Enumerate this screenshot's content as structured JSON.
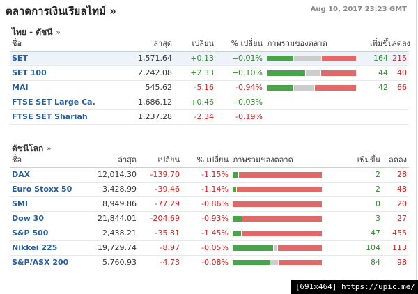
{
  "header": {
    "title": "ตลาดการเงินเรียลไทม์ »",
    "timestamp": "Aug 10, 2017 23:23 GMT"
  },
  "thai": {
    "title": "ไทย - ดัชนี",
    "chevron": "»",
    "columns": [
      "ชื่อ",
      "ล่าสุด",
      "เปลี่ยน",
      "% เปลี่ยน",
      "ภาพรวมของตลาด",
      "เพิ่มขึ้น",
      "ลดลง"
    ],
    "rows": [
      {
        "name": "SET",
        "last": "1,571.64",
        "change": "+0.13",
        "pct": "+0.01%",
        "up": "164",
        "down": "215",
        "dir": "pos",
        "breadth": [
          164,
          170,
          215
        ]
      },
      {
        "name": "SET 100",
        "last": "2,242.08",
        "change": "+2.33",
        "pct": "+0.10%",
        "up": "44",
        "down": "40",
        "dir": "pos",
        "breadth": [
          44,
          16,
          40
        ]
      },
      {
        "name": "MAI",
        "last": "545.62",
        "change": "-5.16",
        "pct": "-0.94%",
        "up": "42",
        "down": "66",
        "dir": "neg",
        "breadth": [
          42,
          33,
          66
        ]
      },
      {
        "name": "FTSE SET Large Ca.",
        "last": "1,686.12",
        "change": "+0.46",
        "pct": "+0.03%",
        "up": "",
        "down": "",
        "dir": "pos",
        "breadth": null
      },
      {
        "name": "FTSE SET Shariah",
        "last": "1,237.28",
        "change": "-2.34",
        "pct": "-0.19%",
        "up": "",
        "down": "",
        "dir": "neg",
        "breadth": null
      }
    ]
  },
  "world": {
    "title": "ดัชนีโลก",
    "chevron": "»",
    "columns": [
      "ชื่อ",
      "ล่าสุด",
      "เปลี่ยน",
      "% เปลี่ยน",
      "ภาพรวมของตลาด",
      "เพิ่มขึ้น",
      "ลดลง"
    ],
    "rows": [
      {
        "name": "DAX",
        "last": "12,014.30",
        "change": "-139.70",
        "pct": "-1.15%",
        "up": "2",
        "down": "28",
        "dir": "neg",
        "breadth": [
          2,
          0,
          28
        ]
      },
      {
        "name": "Euro Stoxx 50",
        "last": "3,428.99",
        "change": "-39.46",
        "pct": "-1.14%",
        "up": "2",
        "down": "48",
        "dir": "neg",
        "breadth": [
          2,
          0,
          48
        ]
      },
      {
        "name": "SMI",
        "last": "8,949.86",
        "change": "-77.29",
        "pct": "-0.86%",
        "up": "0",
        "down": "20",
        "dir": "neg",
        "breadth": [
          0,
          0,
          20
        ]
      },
      {
        "name": "Dow 30",
        "last": "21,844.01",
        "change": "-204.69",
        "pct": "-0.93%",
        "up": "3",
        "down": "27",
        "dir": "neg",
        "breadth": [
          3,
          0,
          27
        ]
      },
      {
        "name": "S&P 500",
        "last": "2,438.21",
        "change": "-35.81",
        "pct": "-1.45%",
        "up": "47",
        "down": "455",
        "dir": "neg",
        "breadth": [
          47,
          0,
          455
        ]
      },
      {
        "name": "Nikkei 225",
        "last": "19,729.74",
        "change": "-8.97",
        "pct": "-0.05%",
        "up": "104",
        "down": "113",
        "dir": "neg",
        "breadth": [
          104,
          8,
          113
        ]
      },
      {
        "name": "S&P/ASX 200",
        "last": "5,760.93",
        "change": "-4.73",
        "pct": "-0.08%",
        "up": "84",
        "down": "98",
        "dir": "neg",
        "breadth": [
          84,
          17,
          98
        ]
      }
    ]
  },
  "watermark": "[691x464] https://upic.me/",
  "colors": {
    "up": "#2d8f26",
    "down": "#d42020",
    "link": "#245c9e",
    "bar_up": "#4aa34a",
    "bar_unchanged": "#cccccc",
    "bar_down": "#e06a6a"
  }
}
